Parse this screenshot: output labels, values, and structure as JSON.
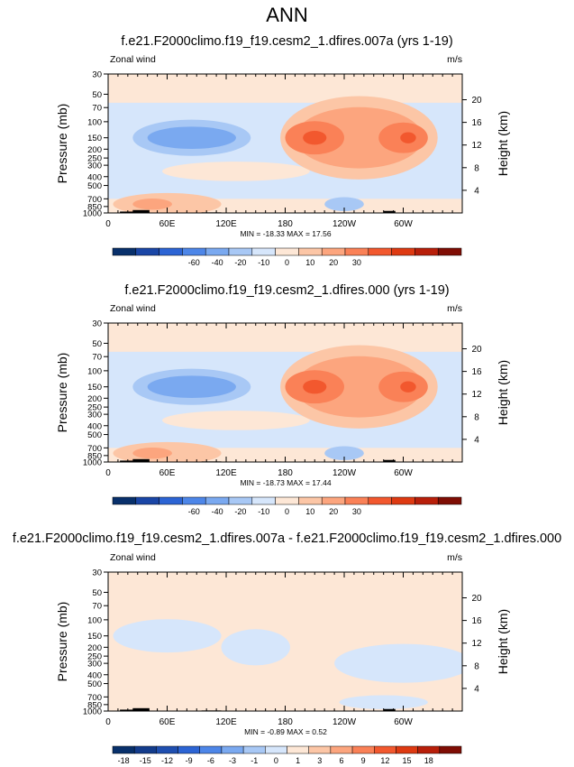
{
  "page_title": "ANN",
  "panels": [
    {
      "title": "f.e21.F2000climo.f19_f19.cesm2_1.dfires.007a (yrs 1-19)",
      "left_label": "Zonal wind",
      "right_label": "m/s",
      "stats": "MIN = -18.33  MAX =  17.56",
      "colorbar_ticks": [
        "-60",
        "-40",
        "-20",
        "-10",
        "0",
        "10",
        "20",
        "30"
      ],
      "colorbar_colors": [
        "#08306b",
        "#1a46a6",
        "#2c64d4",
        "#4d86e8",
        "#7aa9f0",
        "#a8c8f5",
        "#d6e6fb",
        "#fde7d6",
        "#fcc6a6",
        "#fca57e",
        "#fa8157",
        "#f2582e",
        "#de3a12",
        "#b81f0a",
        "#7f0d04"
      ]
    },
    {
      "title": "f.e21.F2000climo.f19_f19.cesm2_1.dfires.000 (yrs 1-19)",
      "left_label": "Zonal wind",
      "right_label": "m/s",
      "stats": "MIN = -18.73  MAX =  17.44",
      "colorbar_ticks": [
        "-60",
        "-40",
        "-20",
        "-10",
        "0",
        "10",
        "20",
        "30"
      ],
      "colorbar_colors": [
        "#08306b",
        "#1a46a6",
        "#2c64d4",
        "#4d86e8",
        "#7aa9f0",
        "#a8c8f5",
        "#d6e6fb",
        "#fde7d6",
        "#fcc6a6",
        "#fca57e",
        "#fa8157",
        "#f2582e",
        "#de3a12",
        "#b81f0a",
        "#7f0d04"
      ]
    },
    {
      "title": "f.e21.F2000climo.f19_f19.cesm2_1.dfires.007a - f.e21.F2000climo.f19_f19.cesm2_1.dfires.000",
      "left_label": "Zonal wind",
      "right_label": "m/s",
      "stats": "MIN = -0.89  MAX =  0.52",
      "colorbar_ticks": [
        "-18",
        "-15",
        "-12",
        "-9",
        "-6",
        "-3",
        "-1",
        "0",
        "1",
        "3",
        "6",
        "9",
        "12",
        "15",
        "18"
      ],
      "colorbar_colors": [
        "#08306b",
        "#133c8c",
        "#1f4fb0",
        "#2c64d4",
        "#4d86e8",
        "#7aa9f0",
        "#a8c8f5",
        "#d6e6fb",
        "#fde7d6",
        "#fcc6a6",
        "#fca57e",
        "#fa8157",
        "#f2582e",
        "#de3a12",
        "#b81f0a",
        "#7f0d04"
      ]
    }
  ],
  "chart_data": [
    {
      "type": "heatmap",
      "title": "f.e21.F2000climo.f19_f19.cesm2_1.dfires.007a (yrs 1-19)",
      "xlabel": "",
      "ylabel": "Pressure (mb)",
      "y2label": "Height (km)",
      "x_ticks": [
        "0",
        "60E",
        "120E",
        "180",
        "120W",
        "60W"
      ],
      "y_ticks": [
        "30",
        "50",
        "70",
        "100",
        "150",
        "200",
        "250",
        "300",
        "400",
        "500",
        "700",
        "850",
        "1000"
      ],
      "y2_ticks": [
        "20",
        "16",
        "12",
        "8",
        "4"
      ],
      "ylim": [
        1000,
        30
      ],
      "y_scale": "log",
      "grid": false,
      "variable": "Zonal wind",
      "units": "m/s",
      "min": -18.33,
      "max": 17.56,
      "contour_levels": [
        -60,
        -40,
        -20,
        -10,
        0,
        10,
        20,
        30
      ]
    },
    {
      "type": "heatmap",
      "title": "f.e21.F2000climo.f19_f19.cesm2_1.dfires.000 (yrs 1-19)",
      "xlabel": "",
      "ylabel": "Pressure (mb)",
      "y2label": "Height (km)",
      "x_ticks": [
        "0",
        "60E",
        "120E",
        "180",
        "120W",
        "60W"
      ],
      "y_ticks": [
        "30",
        "50",
        "70",
        "100",
        "150",
        "200",
        "250",
        "300",
        "400",
        "500",
        "700",
        "850",
        "1000"
      ],
      "y2_ticks": [
        "20",
        "16",
        "12",
        "8",
        "4"
      ],
      "ylim": [
        1000,
        30
      ],
      "y_scale": "log",
      "grid": false,
      "variable": "Zonal wind",
      "units": "m/s",
      "min": -18.73,
      "max": 17.44,
      "contour_levels": [
        -60,
        -40,
        -20,
        -10,
        0,
        10,
        20,
        30
      ]
    },
    {
      "type": "heatmap",
      "title": "f.e21.F2000climo.f19_f19.cesm2_1.dfires.007a - f.e21.F2000climo.f19_f19.cesm2_1.dfires.000",
      "xlabel": "",
      "ylabel": "Pressure (mb)",
      "y2label": "Height (km)",
      "x_ticks": [
        "0",
        "60E",
        "120E",
        "180",
        "120W",
        "60W"
      ],
      "y_ticks": [
        "30",
        "50",
        "70",
        "100",
        "150",
        "200",
        "250",
        "300",
        "400",
        "500",
        "700",
        "850",
        "1000"
      ],
      "y2_ticks": [
        "20",
        "16",
        "12",
        "8",
        "4"
      ],
      "ylim": [
        1000,
        30
      ],
      "y_scale": "log",
      "grid": false,
      "variable": "Zonal wind",
      "units": "m/s",
      "min": -0.89,
      "max": 0.52,
      "contour_levels": [
        -18,
        -15,
        -12,
        -9,
        -6,
        -3,
        -1,
        0,
        1,
        3,
        6,
        9,
        12,
        15,
        18
      ]
    }
  ]
}
